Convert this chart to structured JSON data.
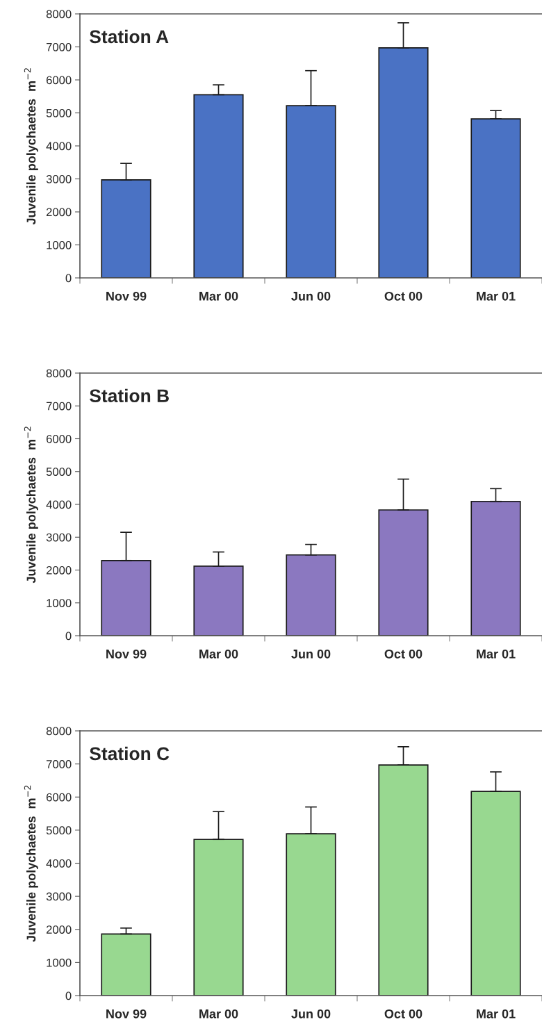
{
  "chart_data": [
    {
      "type": "bar",
      "annotations": [
        "Station A"
      ],
      "ylabel": "Juvenile polychaetes  m$^{−2}$",
      "categories": [
        "Nov 99",
        "Mar 00",
        "Jun 00",
        "Oct 00",
        "Mar 01"
      ],
      "values": [
        2970,
        5550,
        5220,
        6970,
        4820
      ],
      "errors": [
        [
          2970,
          3470
        ],
        [
          5550,
          5850
        ],
        [
          5220,
          6280
        ],
        [
          6970,
          7730
        ],
        [
          4820,
          5070
        ]
      ],
      "color": "#4a72c4",
      "ylim": [
        0,
        8000
      ],
      "yticks": [
        0,
        1000,
        2000,
        3000,
        4000,
        5000,
        6000,
        7000,
        8000
      ]
    },
    {
      "type": "bar",
      "annotations": [
        "Station B"
      ],
      "ylabel": "Juvenile polychaetes  m$^{−2}$",
      "categories": [
        "Nov 99",
        "Mar 00",
        "Jun 00",
        "Oct 00",
        "Mar 01"
      ],
      "values": [
        2290,
        2120,
        2460,
        3830,
        4090
      ],
      "errors": [
        [
          2290,
          3150
        ],
        [
          2120,
          2550
        ],
        [
          2460,
          2780
        ],
        [
          3830,
          4770
        ],
        [
          4090,
          4480
        ]
      ],
      "color": "#8b78c0",
      "ylim": [
        0,
        8000
      ],
      "yticks": [
        0,
        1000,
        2000,
        3000,
        4000,
        5000,
        6000,
        7000,
        8000
      ]
    },
    {
      "type": "bar",
      "annotations": [
        "Station C"
      ],
      "ylabel": "Juvenile polychaetes  m$^{−2}$",
      "categories": [
        "Nov 99",
        "Mar 00",
        "Jun 00",
        "Oct 00",
        "Mar 01"
      ],
      "values": [
        1860,
        4720,
        4890,
        6970,
        6170
      ],
      "errors": [
        [
          1860,
          2040
        ],
        [
          4720,
          5560
        ],
        [
          4890,
          5700
        ],
        [
          6970,
          7520
        ],
        [
          6170,
          6760
        ]
      ],
      "color": "#98d890",
      "ylim": [
        0,
        8000
      ],
      "yticks": [
        0,
        1000,
        2000,
        3000,
        4000,
        5000,
        6000,
        7000,
        8000
      ]
    }
  ]
}
